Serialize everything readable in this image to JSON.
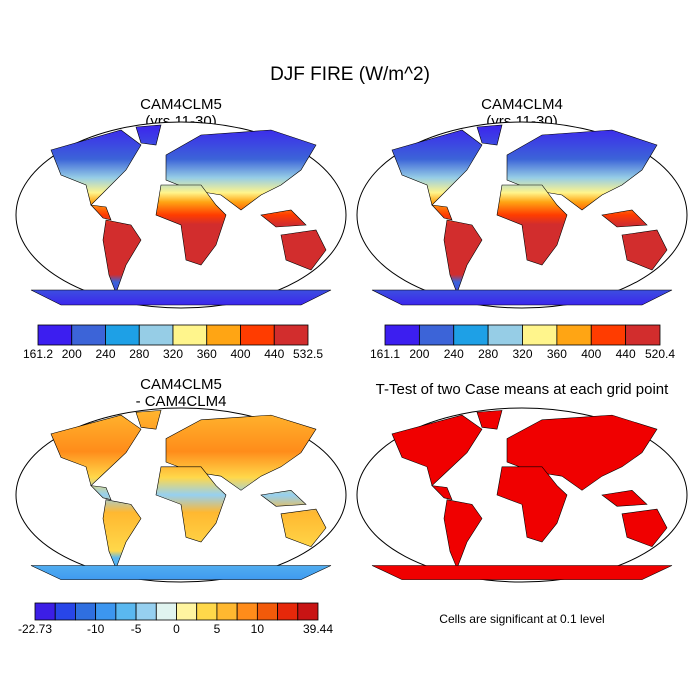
{
  "title": "DJF FIRE (W/m^2)",
  "panels": [
    {
      "title": "CAM4CLM5",
      "subtitle": "(yrs 11-30)",
      "colorbar": {
        "colors": [
          "#3c1ef0",
          "#3c64d8",
          "#1ea0e6",
          "#96cde6",
          "#fff58c",
          "#ffa514",
          "#ff3c00",
          "#d22d2d"
        ],
        "labels": [
          161.2,
          200,
          240,
          280,
          320,
          360,
          400,
          440,
          532.5
        ]
      }
    },
    {
      "title": "CAM4CLM4",
      "subtitle": "(yrs 11-30)",
      "colorbar": {
        "colors": [
          "#3c1ef0",
          "#3c64d8",
          "#1ea0e6",
          "#96cde6",
          "#fff58c",
          "#ffa514",
          "#ff3c00",
          "#d22d2d"
        ],
        "labels": [
          161.1,
          200,
          240,
          280,
          320,
          360,
          400,
          440,
          520.4
        ]
      }
    },
    {
      "title": "CAM4CLM5",
      "subtitle": "- CAM4CLM4",
      "colorbar": {
        "colors": [
          "#3c1ee6",
          "#2846e8",
          "#2f6fe0",
          "#3c96f0",
          "#5ab8f0",
          "#96d0f0",
          "#e0f4f0",
          "#fff5a0",
          "#ffd84a",
          "#ffb830",
          "#ff8c1a",
          "#f25a0a",
          "#e6280a",
          "#c81414"
        ],
        "labels": [
          -22.73,
          null,
          null,
          -10,
          null,
          -5,
          null,
          0,
          null,
          5,
          null,
          10,
          null,
          null,
          39.44
        ]
      }
    },
    {
      "title": "T-Test of two Case means at each grid point",
      "note": "Cells are significant at 0.1 level"
    }
  ]
}
